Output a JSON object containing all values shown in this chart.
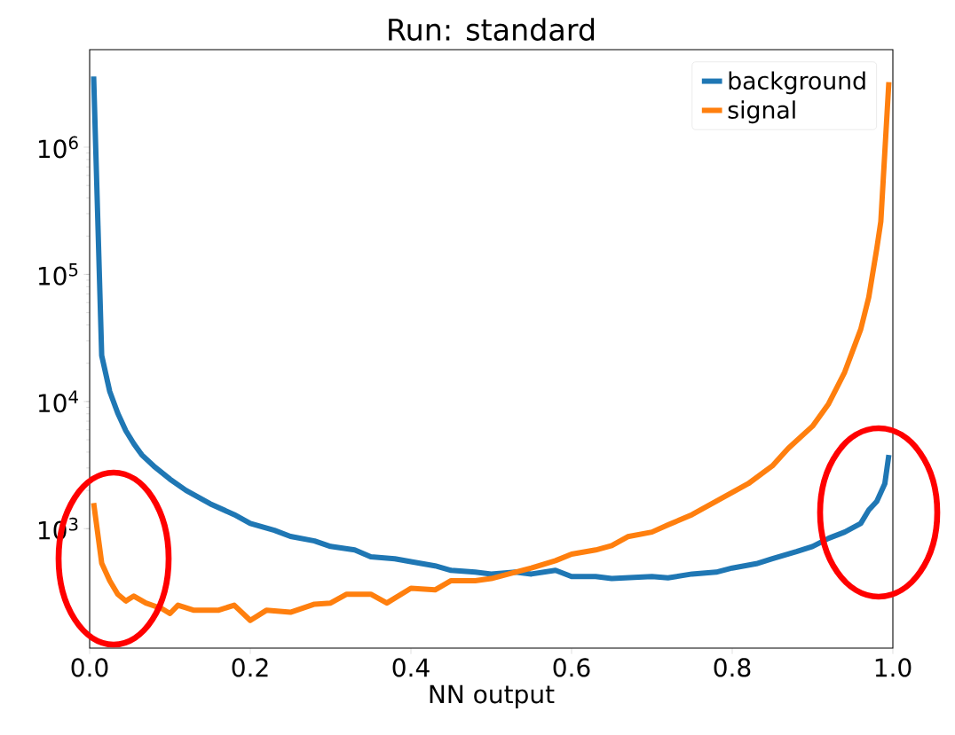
{
  "chart_data": {
    "type": "line",
    "title": "Run: standard",
    "xlabel": "NN output",
    "x": [
      0.005,
      0.015,
      0.025,
      0.035,
      0.045,
      0.055,
      0.065,
      0.08,
      0.1,
      0.12,
      0.15,
      0.18,
      0.2,
      0.23,
      0.25,
      0.28,
      0.3,
      0.33,
      0.35,
      0.38,
      0.4,
      0.43,
      0.45,
      0.48,
      0.5,
      0.53,
      0.55,
      0.58,
      0.6,
      0.63,
      0.65,
      0.7,
      0.72,
      0.75,
      0.78,
      0.8,
      0.83,
      0.85,
      0.88,
      0.9,
      0.92,
      0.94,
      0.96,
      0.97,
      0.98,
      0.99,
      0.995
    ],
    "series": [
      {
        "name": "background",
        "color": "#1f77b4",
        "values": [
          3600000,
          23000,
          12000,
          8100,
          5900,
          4650,
          3800,
          3100,
          2450,
          2000,
          1570,
          1290,
          1100,
          970,
          870,
          800,
          725,
          680,
          600,
          580,
          550,
          510,
          470,
          455,
          440,
          455,
          440,
          470,
          420,
          420,
          405,
          420,
          410,
          440,
          455,
          490,
          530,
          580,
          660,
          725,
          840,
          940,
          1100,
          1400,
          1640,
          2260,
          3800
        ]
      },
      {
        "name": "signal",
        "color": "#ff7f0e",
        "x": [
          0.005,
          0.015,
          0.025,
          0.035,
          0.045,
          0.055,
          0.07,
          0.09,
          0.1,
          0.11,
          0.13,
          0.16,
          0.18,
          0.2,
          0.22,
          0.25,
          0.28,
          0.3,
          0.32,
          0.35,
          0.37,
          0.4,
          0.43,
          0.45,
          0.48,
          0.5,
          0.53,
          0.55,
          0.58,
          0.6,
          0.63,
          0.65,
          0.67,
          0.7,
          0.72,
          0.75,
          0.78,
          0.8,
          0.82,
          0.85,
          0.87,
          0.9,
          0.92,
          0.94,
          0.96,
          0.97,
          0.98,
          0.985,
          0.995
        ],
        "values": [
          1590,
          535,
          390,
          305,
          270,
          295,
          260,
          235,
          215,
          250,
          228,
          228,
          250,
          190,
          228,
          220,
          255,
          260,
          305,
          305,
          260,
          340,
          330,
          390,
          390,
          405,
          455,
          490,
          560,
          630,
          680,
          735,
          865,
          940,
          1070,
          1290,
          1640,
          1930,
          2260,
          3120,
          4300,
          6400,
          9600,
          17000,
          37000,
          66000,
          160000,
          260000,
          3250000
        ]
      }
    ],
    "xlim": [
      0,
      1
    ],
    "ylim": [
      115,
      5850000
    ],
    "log": "y",
    "xticks": [
      {
        "value": 0,
        "label": "0.0"
      },
      {
        "value": 0.2,
        "label": "0.2"
      },
      {
        "value": 0.4,
        "label": "0.4"
      },
      {
        "value": 0.6,
        "label": "0.6"
      },
      {
        "value": 0.8,
        "label": "0.8"
      },
      {
        "value": 1,
        "label": "1.0"
      }
    ],
    "yticks": [
      {
        "value": 1000,
        "label": "10$^{3}$"
      },
      {
        "value": 10000,
        "label": "10$^{4}$"
      },
      {
        "value": 100000,
        "label": "10$^{5}$"
      },
      {
        "value": 1000000,
        "label": "10$^{6}$"
      }
    ],
    "legend": "top right",
    "grid": false,
    "line_style": "solid",
    "marker": "none"
  }
}
